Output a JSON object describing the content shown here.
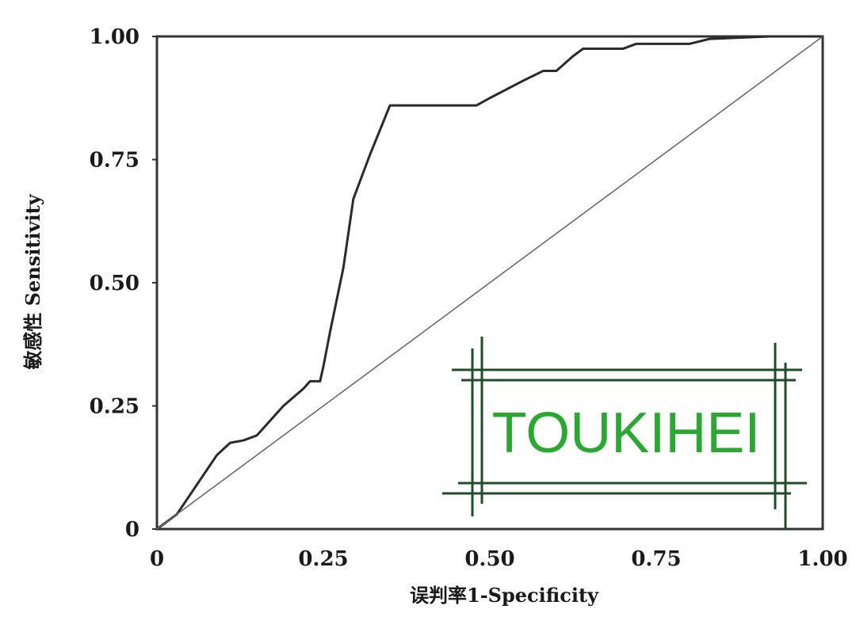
{
  "chart_data": {
    "type": "line",
    "xlabel": "误判率1-Specificity",
    "ylabel": "敏感性 Sensitivity",
    "xlim": [
      0,
      1
    ],
    "ylim": [
      0,
      1
    ],
    "x_ticks": [
      "0",
      "0.25",
      "0.50",
      "0.75",
      "1.00"
    ],
    "y_ticks": [
      "0",
      "0.25",
      "0.50",
      "0.75",
      "1.00"
    ],
    "grid": false,
    "series": [
      {
        "points": [
          [
            0.0,
            0.0
          ],
          [
            0.03,
            0.03
          ],
          [
            0.06,
            0.09
          ],
          [
            0.09,
            0.15
          ],
          [
            0.11,
            0.175
          ],
          [
            0.13,
            0.18
          ],
          [
            0.15,
            0.19
          ],
          [
            0.19,
            0.25
          ],
          [
            0.22,
            0.285
          ],
          [
            0.23,
            0.3
          ],
          [
            0.245,
            0.3
          ],
          [
            0.25,
            0.33
          ],
          [
            0.26,
            0.4
          ],
          [
            0.28,
            0.53
          ],
          [
            0.295,
            0.67
          ],
          [
            0.32,
            0.76
          ],
          [
            0.35,
            0.86
          ],
          [
            0.48,
            0.86
          ],
          [
            0.5,
            0.875
          ],
          [
            0.55,
            0.91
          ],
          [
            0.58,
            0.93
          ],
          [
            0.6,
            0.93
          ],
          [
            0.625,
            0.96
          ],
          [
            0.64,
            0.975
          ],
          [
            0.7,
            0.975
          ],
          [
            0.72,
            0.985
          ],
          [
            0.8,
            0.985
          ],
          [
            0.83,
            0.995
          ],
          [
            0.92,
            1.0
          ],
          [
            1.0,
            1.0
          ]
        ],
        "color": "#2a2a2a"
      },
      {
        "points": [
          [
            0,
            0
          ],
          [
            1,
            1
          ]
        ],
        "color": "#6a6a6a"
      }
    ]
  },
  "watermark": {
    "text": "TOUKIHEI",
    "text_color": "#2aa832",
    "frame_color": "#1f4d2a"
  }
}
